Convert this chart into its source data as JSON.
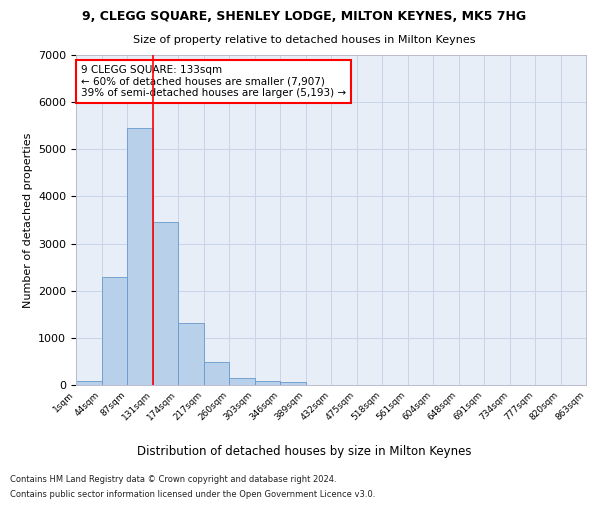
{
  "title1": "9, CLEGG SQUARE, SHENLEY LODGE, MILTON KEYNES, MK5 7HG",
  "title2": "Size of property relative to detached houses in Milton Keynes",
  "xlabel": "Distribution of detached houses by size in Milton Keynes",
  "ylabel": "Number of detached properties",
  "footnote1": "Contains HM Land Registry data © Crown copyright and database right 2024.",
  "footnote2": "Contains public sector information licensed under the Open Government Licence v3.0.",
  "bar_values": [
    75,
    2300,
    5450,
    3450,
    1320,
    480,
    155,
    90,
    55,
    0,
    0,
    0,
    0,
    0,
    0,
    0,
    0,
    0,
    0,
    0
  ],
  "bin_labels": [
    "1sqm",
    "44sqm",
    "87sqm",
    "131sqm",
    "174sqm",
    "217sqm",
    "260sqm",
    "303sqm",
    "346sqm",
    "389sqm",
    "432sqm",
    "475sqm",
    "518sqm",
    "561sqm",
    "604sqm",
    "648sqm",
    "691sqm",
    "734sqm",
    "777sqm",
    "820sqm",
    "863sqm"
  ],
  "bar_color": "#b8d0ea",
  "bar_edge_color": "#6699cc",
  "grid_color": "#c8d4e8",
  "background_color": "#e8eef8",
  "vline_color": "red",
  "vline_x": 3,
  "annotation_text": "9 CLEGG SQUARE: 133sqm\n← 60% of detached houses are smaller (7,907)\n39% of semi-detached houses are larger (5,193) →",
  "annotation_box_color": "white",
  "annotation_box_edge": "red",
  "ylim": [
    0,
    7000
  ],
  "yticks": [
    0,
    1000,
    2000,
    3000,
    4000,
    5000,
    6000,
    7000
  ]
}
